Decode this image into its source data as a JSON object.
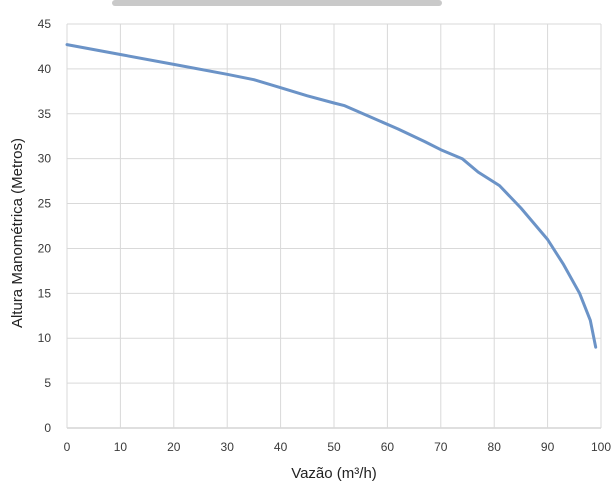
{
  "chart_data": {
    "type": "line",
    "title": "",
    "xlabel": "Vazão (m³/h)",
    "ylabel": "Altura Manométrica (Metros)",
    "xlim": [
      0,
      100
    ],
    "ylim": [
      0,
      45
    ],
    "xticks": [
      0,
      10,
      20,
      30,
      40,
      50,
      60,
      70,
      80,
      90,
      100
    ],
    "yticks": [
      0,
      5,
      10,
      15,
      20,
      25,
      30,
      35,
      40,
      45
    ],
    "grid": true,
    "legend": "none",
    "series": [
      {
        "color": "#6b93c7",
        "x": [
          0,
          10,
          20,
          30,
          35,
          40,
          45,
          50,
          52,
          57,
          62,
          67,
          70,
          74,
          77,
          81,
          85,
          90,
          93,
          96,
          98,
          99
        ],
        "y": [
          42.7,
          41.6,
          40.5,
          39.4,
          38.8,
          37.9,
          37.0,
          36.2,
          35.9,
          34.6,
          33.3,
          31.9,
          31.0,
          30.0,
          28.5,
          27.0,
          24.5,
          21.0,
          18.2,
          15.0,
          12.0,
          9.0
        ]
      }
    ]
  }
}
